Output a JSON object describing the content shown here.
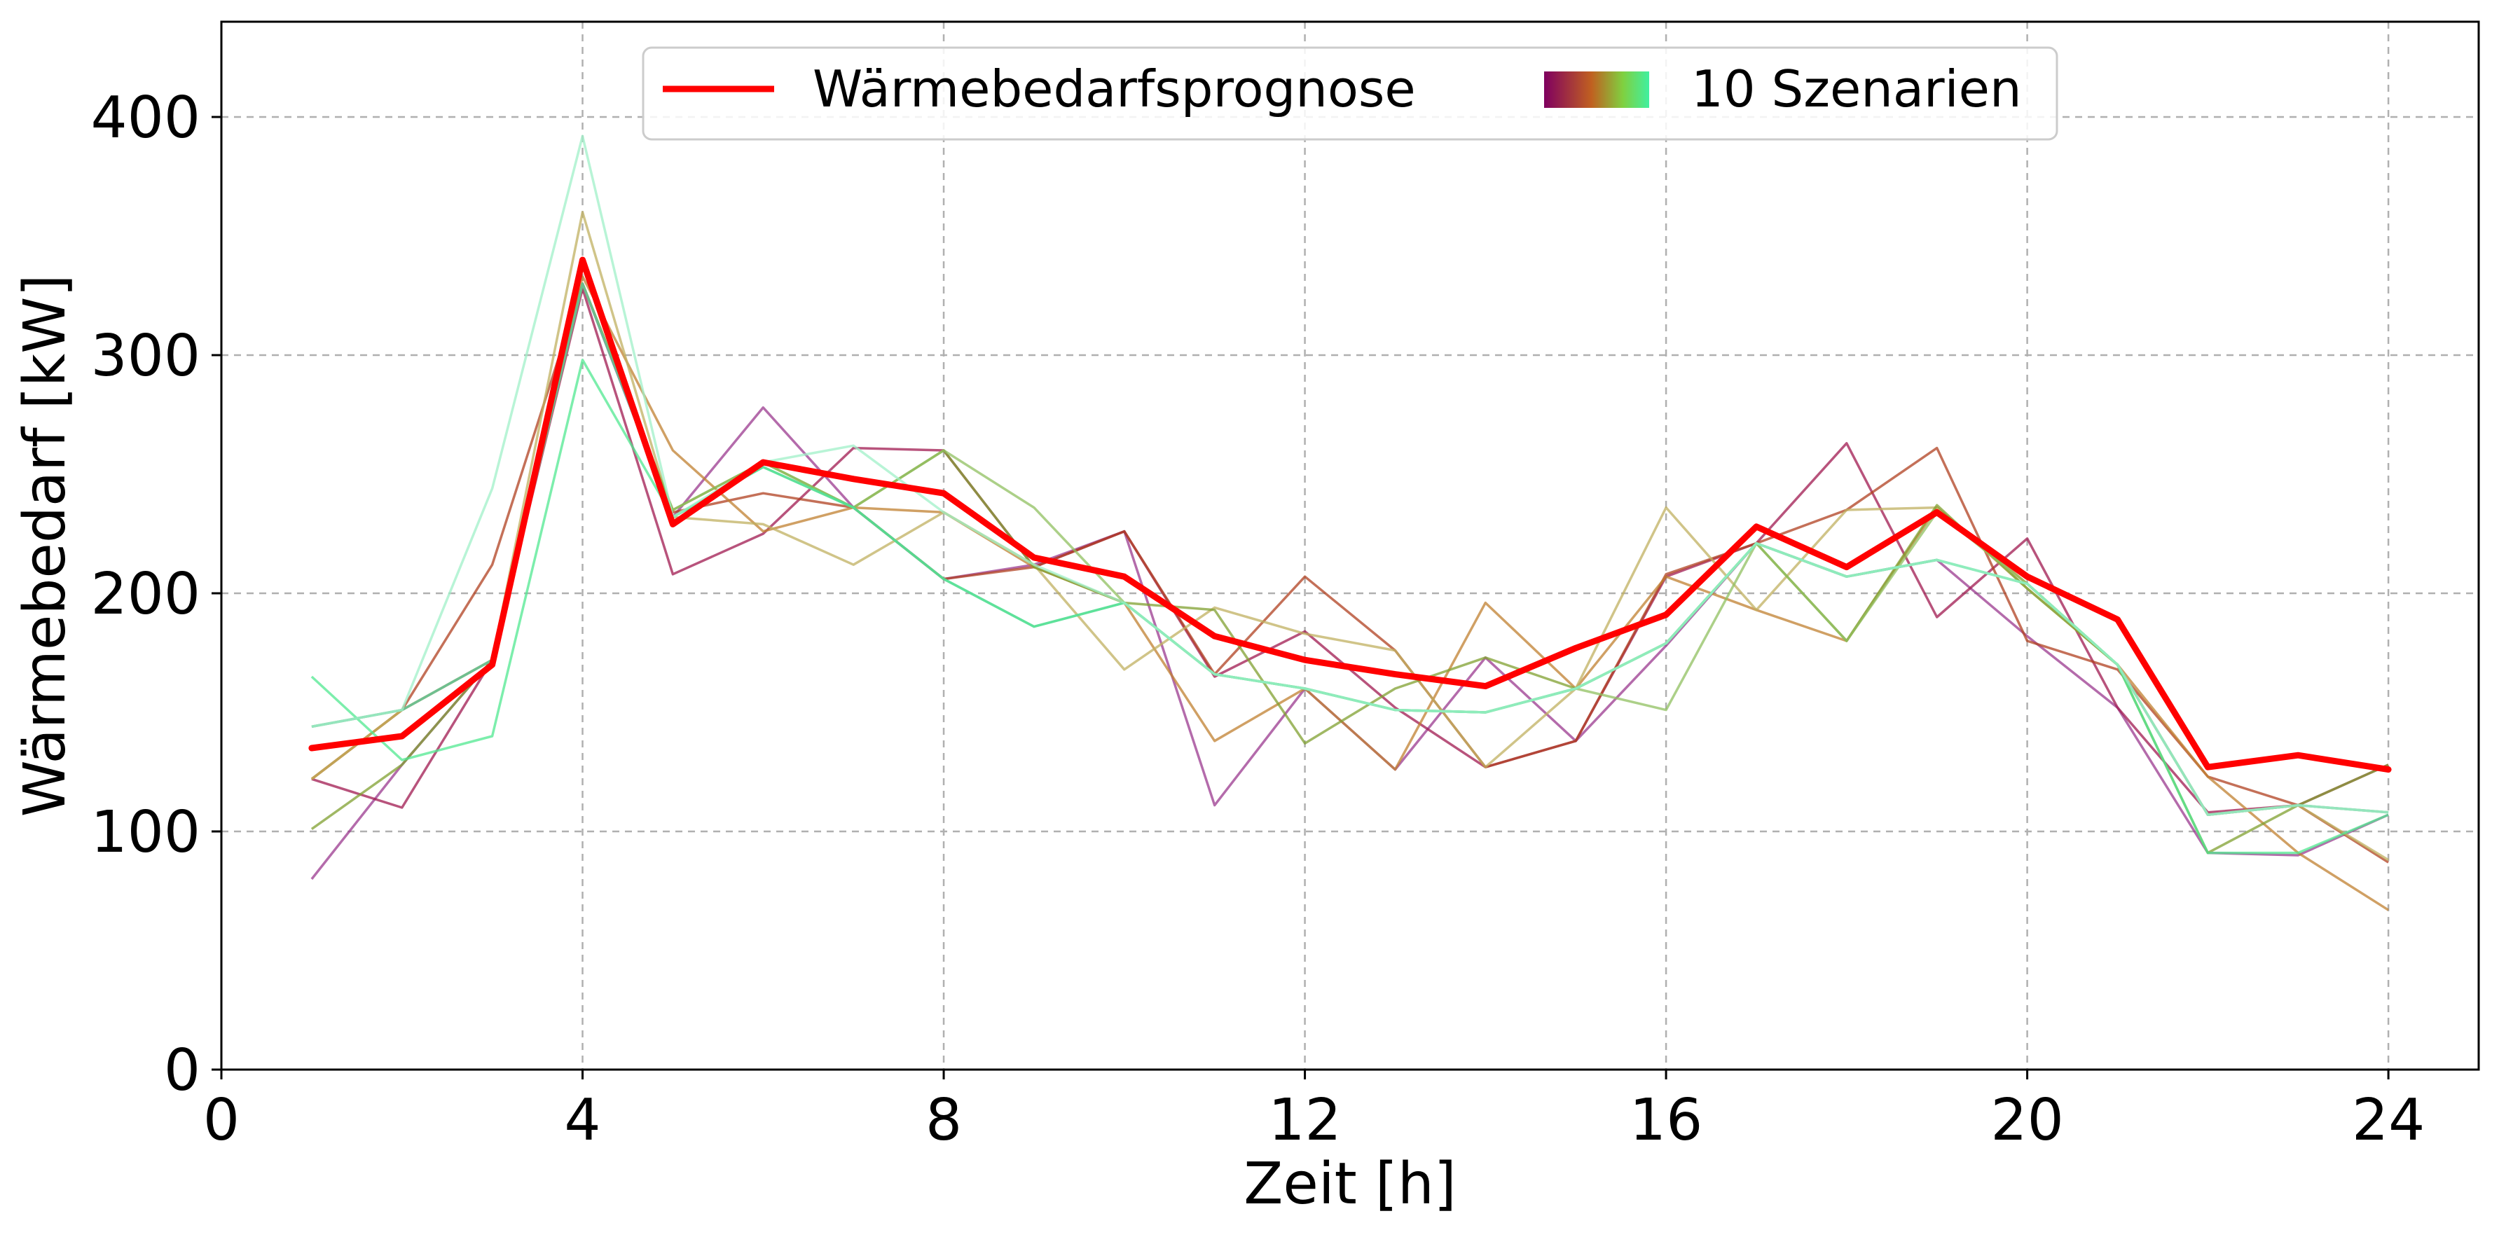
{
  "chart_data": {
    "type": "line",
    "xlabel": "Zeit [h]",
    "ylabel": "Wärmebedarf [kW]",
    "xlim": [
      0,
      25
    ],
    "ylim": [
      0,
      440
    ],
    "xticks": [
      0,
      4,
      8,
      12,
      16,
      20,
      24
    ],
    "yticks": [
      0,
      100,
      200,
      300,
      400
    ],
    "grid": true,
    "legend": {
      "placement": "top-center",
      "entries": [
        {
          "label": "Wärmebedarfsprognose",
          "style": "line",
          "color": "#ff0000"
        },
        {
          "label": "10 Szenarien",
          "style": "gradient",
          "colors": [
            "#800060",
            "#c06020",
            "#80d040",
            "#40f0a0"
          ]
        }
      ]
    },
    "x": [
      1,
      2,
      3,
      4,
      5,
      6,
      7,
      8,
      9,
      10,
      11,
      12,
      13,
      14,
      15,
      16,
      17,
      18,
      19,
      20,
      21,
      22,
      23,
      24
    ],
    "forecast": {
      "name": "Wärmebedarfsprognose",
      "color": "#ff0000",
      "values": [
        135,
        140,
        170,
        340,
        229,
        255,
        248,
        242,
        215,
        207,
        182,
        172,
        166,
        161,
        177,
        191,
        228,
        211,
        234,
        207,
        189,
        127,
        132,
        126
      ]
    },
    "scenarios": [
      {
        "color": "#9b3a8f",
        "values": [
          80,
          128,
          172,
          330,
          232,
          278,
          236,
          206,
          212,
          226,
          111,
          160,
          126,
          173,
          138,
          178,
          221,
          207,
          214,
          182,
          152,
          91,
          90,
          107
        ]
      },
      {
        "color": "#a01a50",
        "values": [
          122,
          110,
          172,
          328,
          208,
          225,
          261,
          260,
          211,
          226,
          165,
          184,
          152,
          127,
          138,
          207,
          221,
          263,
          190,
          223,
          152,
          108,
          111,
          128
        ]
      },
      {
        "color": "#b04020",
        "values": [
          122,
          151,
          212,
          330,
          234,
          242,
          236,
          206,
          211,
          226,
          166,
          207,
          176,
          127,
          138,
          208,
          221,
          235,
          261,
          180,
          168,
          123,
          111,
          87
        ]
      },
      {
        "color": "#c08030",
        "values": [
          122,
          151,
          172,
          333,
          260,
          226,
          236,
          234,
          211,
          196,
          138,
          160,
          126,
          196,
          160,
          207,
          193,
          180,
          236,
          204,
          170,
          123,
          91,
          67
        ]
      },
      {
        "color": "#c0b060",
        "values": [
          122,
          151,
          172,
          360,
          232,
          229,
          212,
          234,
          212,
          168,
          194,
          183,
          176,
          127,
          160,
          236,
          193,
          235,
          236,
          202,
          170,
          107,
          111,
          88
        ]
      },
      {
        "color": "#80a030",
        "values": [
          101,
          128,
          172,
          330,
          235,
          255,
          236,
          260,
          211,
          196,
          193,
          137,
          160,
          173,
          160,
          179,
          221,
          180,
          237,
          202,
          170,
          91,
          111,
          128
        ]
      },
      {
        "color": "#90c060",
        "values": [
          144,
          151,
          172,
          330,
          235,
          255,
          236,
          260,
          236,
          196,
          166,
          160,
          151,
          150,
          160,
          151,
          221,
          180,
          234,
          204,
          170,
          107,
          111,
          108
        ]
      },
      {
        "color": "#60c0a0",
        "values": [
          144,
          151,
          172,
          330,
          232,
          253,
          236,
          206,
          186,
          196,
          166,
          160,
          151,
          150,
          160,
          179,
          221,
          207,
          214,
          204,
          170,
          107,
          111,
          108
        ]
      },
      {
        "color": "#50e890",
        "values": [
          165,
          130,
          140,
          298,
          232,
          253,
          236,
          206,
          186,
          196,
          166,
          160,
          151,
          150,
          160,
          179,
          221,
          207,
          214,
          204,
          170,
          91,
          91,
          107
        ]
      },
      {
        "color": "#a0f0c8",
        "values": [
          144,
          151,
          244,
          392,
          232,
          255,
          262,
          234,
          212,
          196,
          166,
          160,
          151,
          150,
          160,
          179,
          221,
          207,
          214,
          204,
          170,
          107,
          111,
          108
        ]
      }
    ]
  }
}
